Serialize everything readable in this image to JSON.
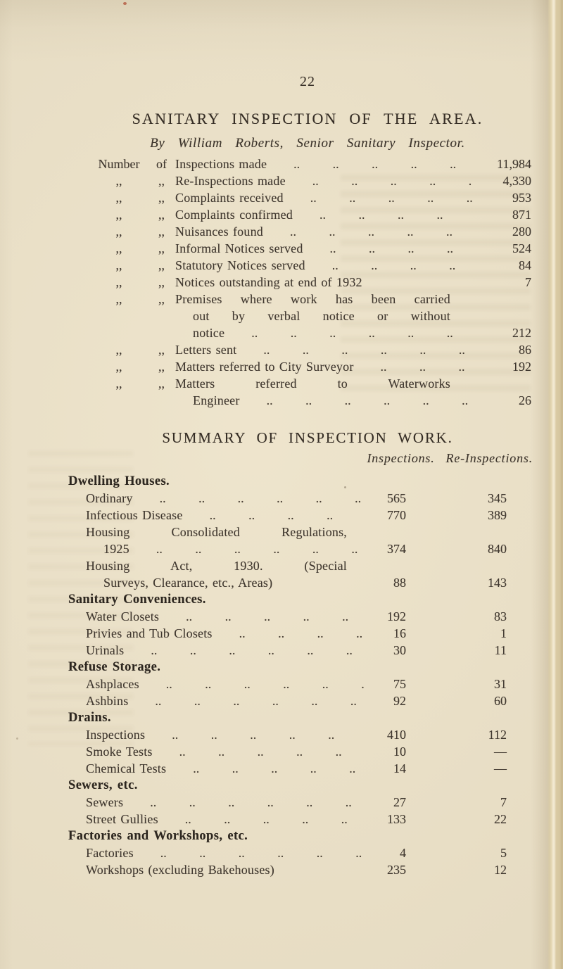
{
  "colors": {
    "paper": "#ece2c9",
    "ink": "#3f372f",
    "ink_bold": "#2c261f"
  },
  "page": {
    "number": "22",
    "title": "SANITARY INSPECTION OF THE AREA.",
    "byline": "By William Roberts, Senior Sanitary Inspector."
  },
  "inspection_list": {
    "rows": [
      {
        "label": [
          "Number",
          "of"
        ],
        "text": "Inspections made",
        "dots": true,
        "value": "11,984"
      },
      {
        "label": [
          ",,",
          ",,"
        ],
        "text": "Re-Inspections made",
        "dots": true,
        "value": "4,330"
      },
      {
        "label": [
          ",,",
          ",,"
        ],
        "text": "Complaints received",
        "dots": true,
        "value": "953"
      },
      {
        "label": [
          ",,",
          ",,"
        ],
        "text": "Complaints confirmed",
        "dots": true,
        "value": "871"
      },
      {
        "label": [
          ",,",
          ",,"
        ],
        "text": "Nuisances found",
        "dots": true,
        "value": "280"
      },
      {
        "label": [
          ",,",
          ",,"
        ],
        "text": "Informal Notices served",
        "dots": true,
        "value": "524"
      },
      {
        "label": [
          ",,",
          ",,"
        ],
        "text": "Statutory Notices served",
        "dots": true,
        "value": "84"
      },
      {
        "label": [
          ",,",
          ",,"
        ],
        "text": "Notices outstanding at end of 1932",
        "dots": false,
        "value": "7"
      },
      {
        "label": [
          ",,",
          ",,"
        ],
        "text": "Premises where work has been carried",
        "dots": false,
        "value": "",
        "justify": true
      },
      {
        "label": null,
        "text": "out by verbal notice or without",
        "dots": false,
        "value": "",
        "justify": true
      },
      {
        "label": null,
        "text": "notice",
        "dots": true,
        "value": "212"
      },
      {
        "label": [
          ",,",
          ",,"
        ],
        "text": "Letters sent",
        "dots": true,
        "value": "86"
      },
      {
        "label": [
          ",,",
          ",,"
        ],
        "text": "Matters referred to City Surveyor",
        "dots": true,
        "value": "192"
      },
      {
        "label": [
          ",,",
          ",,"
        ],
        "text": "Matters referred to Waterworks",
        "dots": false,
        "value": "",
        "justify": true
      },
      {
        "label": null,
        "text": "Engineer",
        "dots": true,
        "value": "26"
      }
    ]
  },
  "summary": {
    "heading": "SUMMARY OF INSPECTION WORK.",
    "col_headers": [
      "Inspections.",
      "Re-Inspections."
    ],
    "sections": [
      {
        "title": "Dwelling Houses.",
        "lines": [
          {
            "text": "Ordinary",
            "dots": true,
            "insp": "565",
            "reinsp": "345"
          },
          {
            "text": "Infectious Disease",
            "dots": true,
            "insp": "770",
            "reinsp": "389"
          },
          {
            "text": "Housing Consolidated Regulations,",
            "dots": false,
            "justify": true
          },
          {
            "text": "1925",
            "cont": true,
            "dots": true,
            "insp": "374",
            "reinsp": "840"
          },
          {
            "text": "Housing Act, 1930. (Special",
            "dots": false,
            "justify": true
          },
          {
            "text": "Surveys, Clearance, etc., Areas)",
            "cont": true,
            "dots": false,
            "insp": "88",
            "reinsp": "143"
          }
        ]
      },
      {
        "title": "Sanitary Conveniences.",
        "lines": [
          {
            "text": "Water Closets",
            "dots": true,
            "insp": "192",
            "reinsp": "83"
          },
          {
            "text": "Privies and Tub Closets",
            "dots": true,
            "insp": "16",
            "reinsp": "1"
          },
          {
            "text": "Urinals",
            "dots": true,
            "insp": "30",
            "reinsp": "11"
          }
        ]
      },
      {
        "title": "Refuse Storage.",
        "lines": [
          {
            "text": "Ashplaces",
            "dots": true,
            "insp": "75",
            "reinsp": "31"
          },
          {
            "text": "Ashbins",
            "dots": true,
            "insp": "92",
            "reinsp": "60"
          }
        ]
      },
      {
        "title": "Drains.",
        "lines": [
          {
            "text": "Inspections",
            "dots": true,
            "insp": "410",
            "reinsp": "112"
          },
          {
            "text": "Smoke Tests",
            "dots": true,
            "insp": "10",
            "reinsp": "—"
          },
          {
            "text": "Chemical Tests",
            "dots": true,
            "insp": "14",
            "reinsp": "—"
          }
        ]
      },
      {
        "title": "Sewers, etc.",
        "lines": [
          {
            "text": "Sewers",
            "dots": true,
            "insp": "27",
            "reinsp": "7"
          },
          {
            "text": "Street Gullies",
            "dots": true,
            "insp": "133",
            "reinsp": "22"
          }
        ]
      },
      {
        "title": "Factories and Workshops, etc.",
        "lines": [
          {
            "text": "Factories",
            "dots": true,
            "insp": "4",
            "reinsp": "5"
          },
          {
            "text": "Workshops (excluding Bakehouses)",
            "dots": false,
            "insp": "235",
            "reinsp": "12"
          }
        ]
      }
    ]
  }
}
